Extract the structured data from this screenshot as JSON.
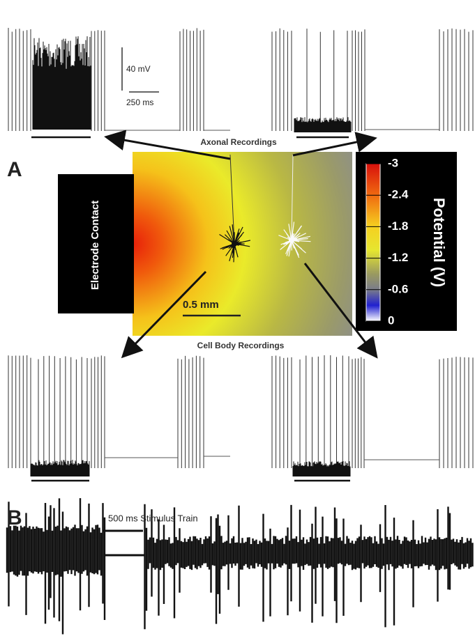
{
  "figure": {
    "panel_a": {
      "label": "A",
      "scale_voltage": "40 mV",
      "scale_time": "250 ms",
      "axonal_title": "Axonal Recordings",
      "electrode": "Electrode Contact",
      "length_scale": "0.5 mm",
      "cell_body_title": "Cell Body Recordings",
      "colorbar": {
        "label": "Potential (V)",
        "lim": [
          -3,
          0
        ],
        "ticks": [
          -3,
          -2.4,
          -1.8,
          -1.2,
          -0.6,
          0
        ]
      }
    },
    "panel_b": {
      "label": "B",
      "stimulus": "500 ms Stimulus Train"
    }
  }
}
